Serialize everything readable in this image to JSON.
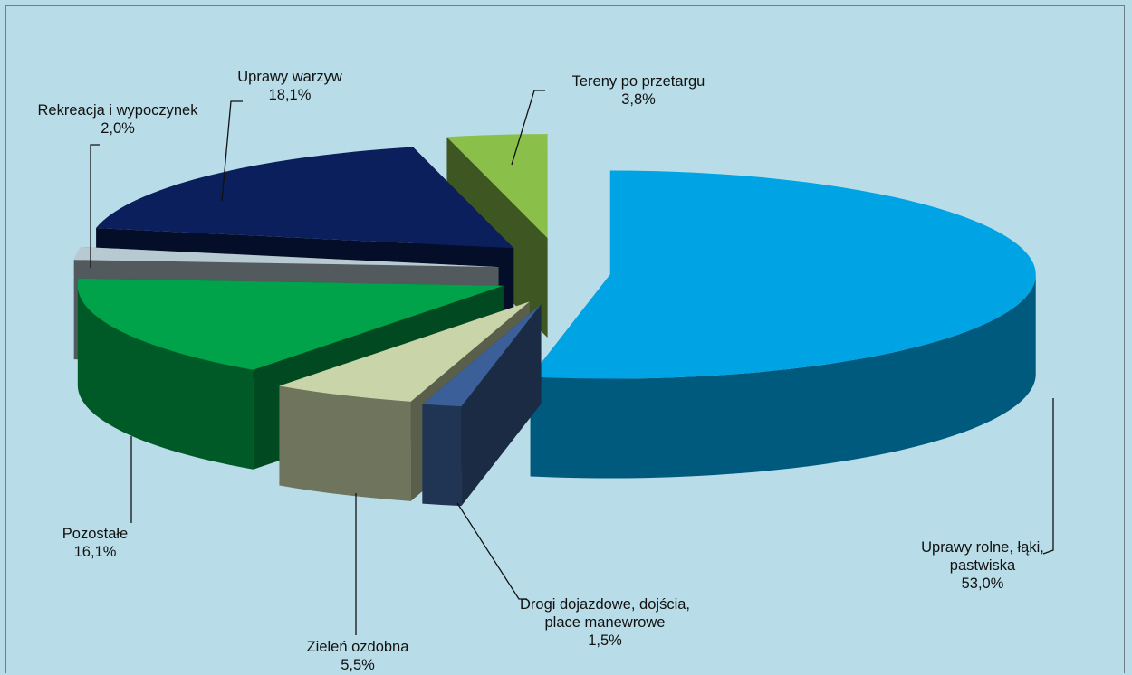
{
  "chart_data": {
    "type": "pie",
    "categories": [
      "Uprawy rolne, łąki, pastwiska",
      "Drogi dojazdowe, dojścia, place manewrowe",
      "Zieleń ozdobna",
      "Pozostałe",
      "Rekreacja i wypoczynek",
      "Uprawy warzyw",
      "Tereny po przetargu"
    ],
    "values": [
      53.0,
      1.5,
      5.5,
      16.1,
      2.0,
      18.1,
      3.8
    ],
    "value_labels": [
      "53,0%",
      "1,5%",
      "5,5%",
      "16,1%",
      "2,0%",
      "18,1%",
      "3,8%"
    ],
    "colors": [
      "#00a3e4",
      "#3b5f98",
      "#c9d4a8",
      "#00a349",
      "#b7c9d1",
      "#0b1f5c",
      "#8ac04a"
    ]
  }
}
